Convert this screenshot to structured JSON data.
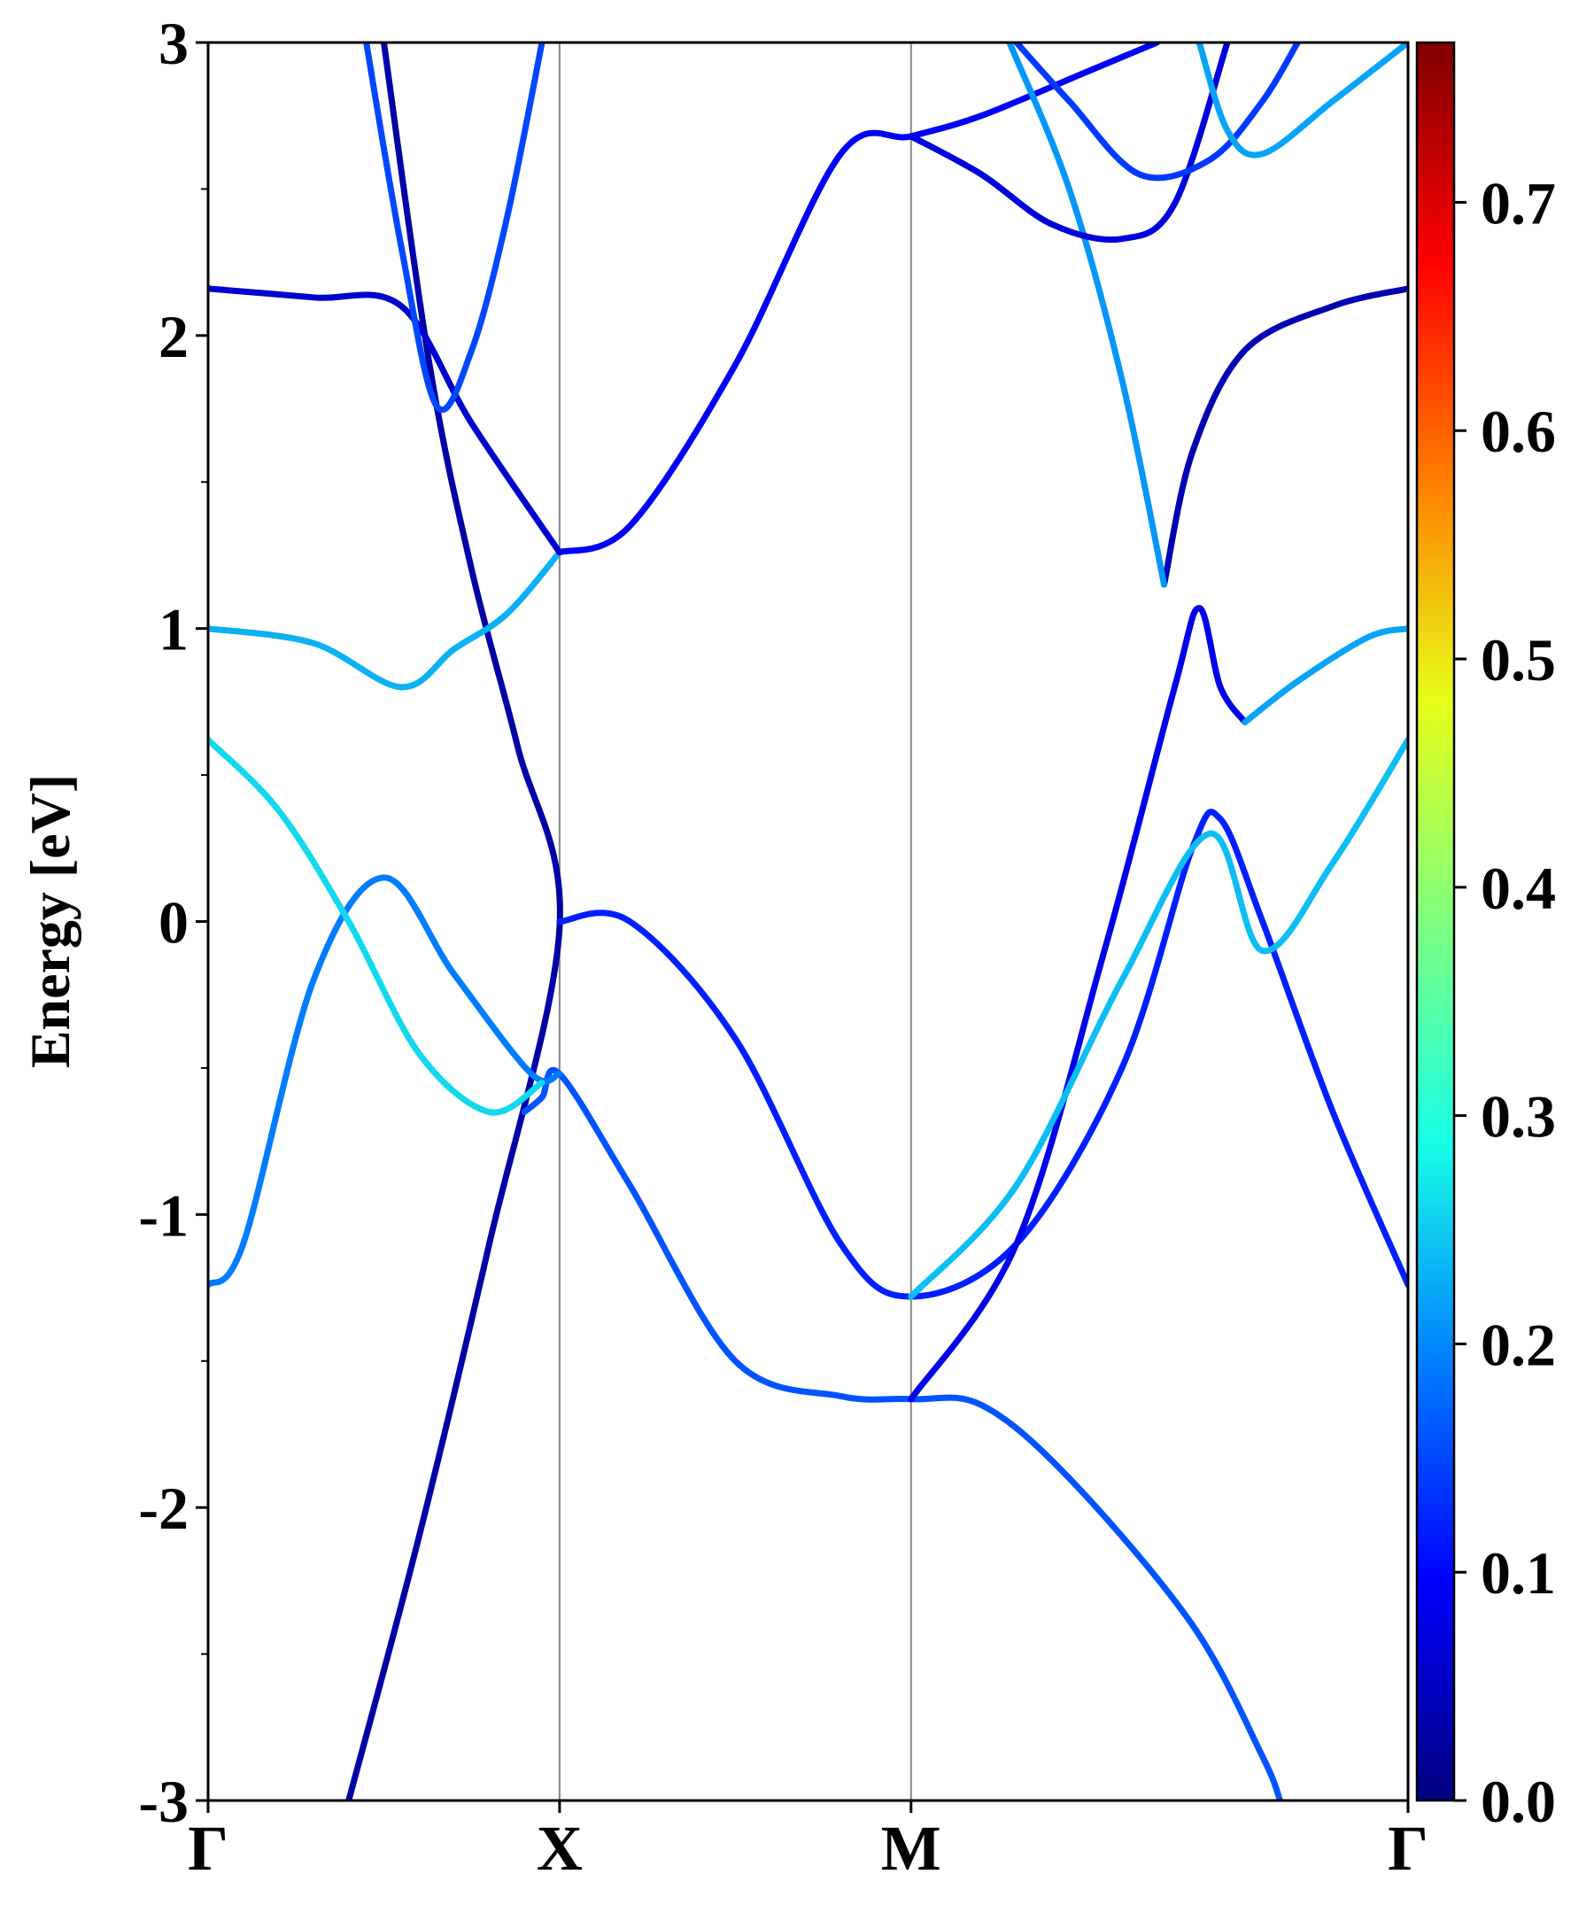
{
  "chart_data": {
    "type": "line",
    "title": "",
    "xlabel": "",
    "ylabel": "Energy [eV]",
    "ylim": [
      -3,
      3
    ],
    "grid": false,
    "legend": "none",
    "x_ticks": [
      {
        "label": "Γ",
        "k": 0.0
      },
      {
        "label": "X",
        "k": 1.0
      },
      {
        "label": "M",
        "k": 2.0
      },
      {
        "label": "Γ",
        "k": 3.414
      }
    ],
    "y_tick_labels": [
      "-3",
      "-2",
      "-1",
      "0",
      "1",
      "2",
      "3"
    ],
    "colorbar": {
      "colormap": "jet",
      "range": [
        0.0,
        0.77
      ],
      "tick_labels": [
        "0.0",
        "0.1",
        "0.2",
        "0.3",
        "0.4",
        "0.5",
        "0.6",
        "0.7"
      ],
      "colors": [
        "#00007f",
        "#0000ff",
        "#007fff",
        "#19ffe6",
        "#7fff7f",
        "#e6ff19",
        "#ff7f00",
        "#ff0000",
        "#7f0000"
      ]
    },
    "series": [
      {
        "color_value": 0.03,
        "points": [
          [
            0.4,
            -3.0
          ],
          [
            0.6,
            -2.1
          ],
          [
            0.8,
            -1.1
          ],
          [
            1.0,
            -0.02
          ],
          [
            0.88,
            0.6
          ],
          [
            0.75,
            1.2
          ],
          [
            0.63,
            1.9
          ],
          [
            0.5,
            3.0
          ]
        ]
      },
      {
        "color_value": 0.16,
        "points": [
          [
            0.9,
            -0.65
          ],
          [
            0.95,
            -0.6
          ],
          [
            1.0,
            -0.52
          ],
          [
            1.2,
            -0.9
          ],
          [
            1.5,
            -1.5
          ],
          [
            1.8,
            -1.62
          ],
          [
            2.0,
            -1.63
          ],
          [
            2.2,
            -1.65
          ],
          [
            2.45,
            -1.9
          ],
          [
            2.8,
            -2.4
          ],
          [
            3.0,
            -2.85
          ],
          [
            3.05,
            -3.0
          ]
        ]
      },
      {
        "color_value": 0.19,
        "points": [
          [
            0.0,
            -1.24
          ],
          [
            0.1,
            -1.1
          ],
          [
            0.3,
            -0.2
          ],
          [
            0.5,
            0.15
          ],
          [
            0.7,
            -0.18
          ],
          [
            0.92,
            -0.52
          ],
          [
            1.0,
            -0.52
          ]
        ]
      },
      {
        "color_value": 0.26,
        "points": [
          [
            0.0,
            0.62
          ],
          [
            0.2,
            0.38
          ],
          [
            0.4,
            0.0
          ],
          [
            0.6,
            -0.45
          ],
          [
            0.8,
            -0.65
          ],
          [
            0.95,
            -0.55
          ]
        ]
      },
      {
        "color_value": 0.12,
        "points": [
          [
            1.0,
            0.0
          ],
          [
            1.2,
            0.0
          ],
          [
            1.5,
            -0.4
          ],
          [
            1.8,
            -1.1
          ],
          [
            2.0,
            -1.28
          ],
          [
            2.3,
            -1.1
          ],
          [
            2.6,
            -0.5
          ],
          [
            2.8,
            0.25
          ],
          [
            2.88,
            0.35
          ],
          [
            3.0,
            0.0
          ],
          [
            3.2,
            -0.65
          ],
          [
            3.414,
            -1.24
          ]
        ]
      },
      {
        "color_value": 0.08,
        "points": [
          [
            2.0,
            -1.63
          ],
          [
            2.3,
            -1.1
          ],
          [
            2.55,
            -0.1
          ],
          [
            2.75,
            0.8
          ],
          [
            2.82,
            1.07
          ],
          [
            2.88,
            0.8
          ],
          [
            2.95,
            0.68
          ]
        ]
      },
      {
        "color_value": 0.22,
        "points": [
          [
            2.95,
            0.68
          ],
          [
            3.1,
            0.82
          ],
          [
            3.3,
            0.97
          ],
          [
            3.414,
            1.0
          ]
        ]
      },
      {
        "color_value": 0.24,
        "points": [
          [
            2.0,
            -1.28
          ],
          [
            2.3,
            -0.9
          ],
          [
            2.6,
            -0.2
          ],
          [
            2.85,
            0.3
          ],
          [
            3.0,
            -0.1
          ],
          [
            3.2,
            0.2
          ],
          [
            3.414,
            0.62
          ]
        ]
      },
      {
        "color_value": 0.23,
        "points": [
          [
            0.0,
            1.0
          ],
          [
            0.3,
            0.95
          ],
          [
            0.55,
            0.8
          ],
          [
            0.7,
            0.93
          ],
          [
            0.85,
            1.05
          ],
          [
            1.0,
            1.26
          ]
        ]
      },
      {
        "color_value": 0.09,
        "points": [
          [
            1.0,
            1.26
          ],
          [
            1.2,
            1.35
          ],
          [
            1.5,
            1.9
          ],
          [
            1.8,
            2.62
          ],
          [
            2.0,
            2.68
          ],
          [
            2.2,
            2.75
          ],
          [
            2.5,
            2.9
          ],
          [
            2.7,
            3.0
          ]
        ]
      },
      {
        "color_value": 0.06,
        "points": [
          [
            0.0,
            2.16
          ],
          [
            0.3,
            2.13
          ],
          [
            0.55,
            2.1
          ],
          [
            0.75,
            1.7
          ],
          [
            1.0,
            1.26
          ]
        ]
      },
      {
        "color_value": 0.15,
        "points": [
          [
            0.45,
            3.0
          ],
          [
            0.55,
            2.3
          ],
          [
            0.65,
            1.76
          ],
          [
            0.75,
            1.95
          ],
          [
            0.85,
            2.4
          ],
          [
            0.95,
            3.0
          ]
        ]
      },
      {
        "color_value": 0.04,
        "points": [
          [
            2.72,
            1.15
          ],
          [
            2.8,
            1.6
          ],
          [
            2.95,
            1.95
          ],
          [
            3.2,
            2.1
          ],
          [
            3.414,
            2.16
          ]
        ]
      },
      {
        "color_value": 0.21,
        "points": [
          [
            2.28,
            3.0
          ],
          [
            2.45,
            2.5
          ],
          [
            2.6,
            1.85
          ],
          [
            2.72,
            1.15
          ]
        ]
      },
      {
        "color_value": 0.07,
        "points": [
          [
            2.0,
            2.68
          ],
          [
            2.2,
            2.55
          ],
          [
            2.4,
            2.38
          ],
          [
            2.6,
            2.33
          ],
          [
            2.75,
            2.45
          ],
          [
            2.9,
            3.0
          ]
        ]
      },
      {
        "color_value": 0.14,
        "points": [
          [
            2.3,
            3.0
          ],
          [
            2.45,
            2.8
          ],
          [
            2.65,
            2.55
          ],
          [
            2.85,
            2.6
          ],
          [
            3.0,
            2.8
          ],
          [
            3.1,
            3.0
          ]
        ]
      },
      {
        "color_value": 0.22,
        "points": [
          [
            2.82,
            3.0
          ],
          [
            2.9,
            2.7
          ],
          [
            3.0,
            2.62
          ],
          [
            3.2,
            2.8
          ],
          [
            3.414,
            3.0
          ]
        ]
      }
    ]
  }
}
